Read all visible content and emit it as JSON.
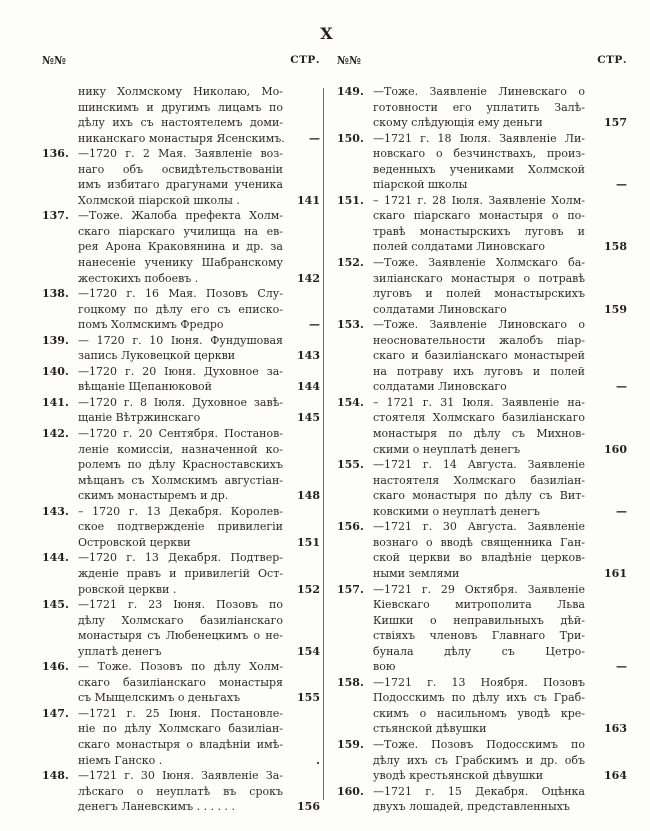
{
  "page": {
    "roman_numeral": "X",
    "header_num_label": "№№",
    "header_page_label": "СТР."
  },
  "colors": {
    "ink": "#2e2a28",
    "paper": "#fdfdfb"
  },
  "columns": [
    {
      "entries": [
        {
          "num": "",
          "page": "—",
          "lines": [
            "нику Холмскому Николаю, Мо-",
            "шинскимъ и другимъ лицамъ по",
            "дѣлу ихъ съ настоятелемъ доми-",
            "никанскаго монастыря Ясенскимъ."
          ]
        },
        {
          "num": "136.",
          "page": "141",
          "lines": [
            "—1720 г. 2 Мая. Заявленіе воз-",
            "наго объ освидѣтельствованіи",
            "имъ избитаго драгунами ученика",
            "Холмской піарской школы ."
          ]
        },
        {
          "num": "137.",
          "page": "142",
          "lines": [
            "—Тоже. Жалоба префекта Холм-",
            "скаго піарскаго училища на ев-",
            "рея Арона Краковянина и др. за",
            "нанесеніе ученику Шабранскому",
            "жестокихъ побоевъ ."
          ]
        },
        {
          "num": "138.",
          "page": "—",
          "lines": [
            "—1720 г. 16 Мая. Позовъ Слу-",
            "гоцкому по дѣлу его съ еписко-",
            "помъ Холмскимъ Фредро"
          ]
        },
        {
          "num": "139.",
          "page": "143",
          "lines": [
            "— 1720 г. 10 Іюня. Фундушовая",
            "запись Луковецкой церкви"
          ]
        },
        {
          "num": "140.",
          "page": "144",
          "lines": [
            "—1720 г. 20 Іюня. Духовное за-",
            "вѣщаніе Щепанюковой"
          ]
        },
        {
          "num": "141.",
          "page": "145",
          "lines": [
            "—1720 г. 8 Іюля. Духовное завѣ-",
            "щаніе Вѣтржинскаго"
          ]
        },
        {
          "num": "142.",
          "page": "148",
          "lines": [
            "—1720 г. 20 Сентября. Постанов-",
            "леніе комиссіи, назначенной ко-",
            "ролемъ по дѣлу Красноставскихъ",
            "мѣщанъ съ Холмскимъ августіан-",
            "скимъ монастыремъ и др."
          ]
        },
        {
          "num": "143.",
          "page": "151",
          "lines": [
            "– 1720 г. 13 Декабря. Королев-",
            "ское подтвержденіе привилегіи",
            "Островской церкви"
          ]
        },
        {
          "num": "144.",
          "page": "152",
          "lines": [
            "—1720 г. 13 Декабря. Подтвер-",
            "жденіе правъ и привилегій Ост-",
            "ровской церкви ."
          ]
        },
        {
          "num": "145.",
          "page": "154",
          "lines": [
            "—1721 г. 23 Іюня. Позовъ по",
            "дѣлу Холмскаго базиліанскаго",
            "монастыря съ Любенецкимъ о не-",
            "уплатѣ денегъ"
          ]
        },
        {
          "num": "146.",
          "page": "155",
          "lines": [
            "— Тоже. Позовъ по дѣлу Холм-",
            "скаго базиліанскаго монастыря",
            "съ Мыщелскимъ о деньгахъ"
          ]
        },
        {
          "num": "147.",
          "page": ".",
          "lines": [
            "—1721 г. 25 Іюня. Постановле-",
            "ніе по дѣлу Холмскаго базиліан-",
            "скаго монастыря о владѣніи имѣ-",
            "ніемъ Ганско ."
          ]
        },
        {
          "num": "148.",
          "page": "156",
          "lines": [
            "—1721 г. 30 Іюня. Заявленіе За-",
            "лѣскаго о неуплатѣ въ срокъ",
            "денегъ Ланевскимъ . . . . . ."
          ]
        }
      ]
    },
    {
      "entries": [
        {
          "num": "149.",
          "page": "157",
          "lines": [
            "—Тоже. Заявленіе Линевскаго о",
            "готовности его уплатить Залѣ-",
            "скому слѣдующія ему деньги"
          ]
        },
        {
          "num": "150.",
          "page": "—",
          "lines": [
            "—1721 г. 18 Іюля. Заявленіе Ли-",
            "новскаго о безчинствахъ, произ-",
            "веденныхъ учениками Холмской",
            "піарской школы"
          ]
        },
        {
          "num": "151.",
          "page": "158",
          "lines": [
            "– 1721 г. 28 Іюля. Заявленіе Холм-",
            "скаго піарскаго монастыря о по-",
            "травѣ монастырскихъ луговъ и",
            "полей солдатами Линовскаго"
          ]
        },
        {
          "num": "152.",
          "page": "159",
          "lines": [
            "—Тоже. Заявленіе Холмскаго ба-",
            "зиліанскаго монастыря о потравѣ",
            "луговъ и полей монастырскихъ",
            "солдатами Линовскаго"
          ]
        },
        {
          "num": "153.",
          "page": "—",
          "lines": [
            "—Тоже. Заявленіе Линовскаго о",
            "неосновательности жалобъ піар-",
            "скаго и базиліанскаго монастырей",
            "на потраву ихъ луговъ и полей",
            "солдатами Линовскаго"
          ]
        },
        {
          "num": "154.",
          "page": "160",
          "lines": [
            "– 1721 г. 31 Іюля. Заявленіе на-",
            "стоятеля Холмскаго базиліанскаго",
            "монастыря по дѣлу съ Михнов-",
            "скими о неуплатѣ денегъ"
          ]
        },
        {
          "num": "155.",
          "page": "—",
          "lines": [
            "—1721 г. 14 Августа. Заявленіе",
            "настоятеля Холмскаго базиліан-",
            "скаго монастыря по дѣлу съ Вит-",
            "ковскими о неуплатѣ денегъ"
          ]
        },
        {
          "num": "156.",
          "page": "161",
          "lines": [
            "—1721 г. 30 Августа. Заявленіе",
            "вознаго о вводѣ священника Ган-",
            "ской церкви во владѣніе церков-",
            "ными землями"
          ]
        },
        {
          "num": "157.",
          "page": "—",
          "lines": [
            "—1721 г. 29 Октября. Заявленіе",
            "Кіевскаго митрополита Льва",
            "Кишки о неправильныхъ дѣй-",
            "ствіяхъ членовъ Главнаго Три-",
            "бунала дѣлу съ Цетро-",
            "вою"
          ]
        },
        {
          "num": "158.",
          "page": "163",
          "lines": [
            "—1721 г. 13 Ноября. Позовъ",
            "Подосскимъ по дѣлу ихъ съ Граб-",
            "скимъ о насильномъ уводѣ кре-",
            "стьянской дѣвушки"
          ]
        },
        {
          "num": "159.",
          "page": "164",
          "lines": [
            "—Тоже. Позовъ Подосскимъ по",
            "дѣлу ихъ съ Грабскимъ и др. объ",
            "уводѣ крестьянской дѣвушки"
          ]
        },
        {
          "num": "160.",
          "page": "",
          "lines": [
            "—1721 г. 15 Декабря. Оцѣнка",
            "двухъ лошадей, представленныхъ"
          ]
        }
      ]
    }
  ]
}
